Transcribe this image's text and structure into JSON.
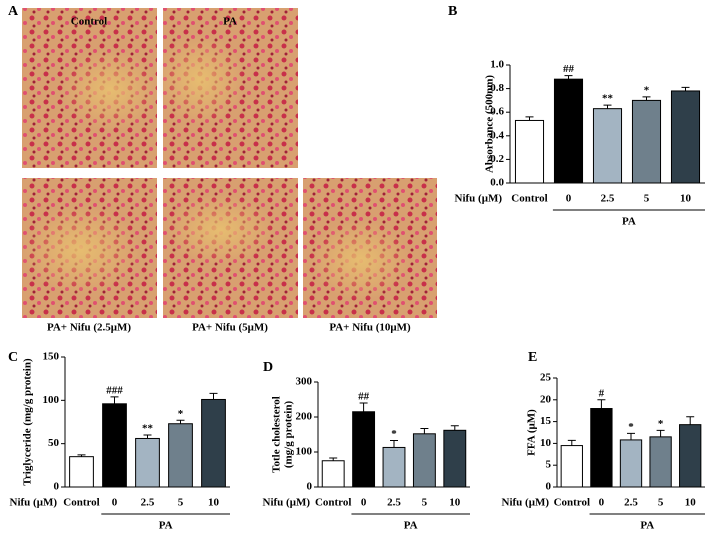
{
  "panel_a": {
    "letter": "A",
    "labels": [
      "Control",
      "PA",
      "PA+ Nifu (2.5μM)",
      "PA+ Nifu (5μM)",
      "PA+ Nifu (10μM)"
    ]
  },
  "chart_data": [
    {
      "letter": "B",
      "type": "bar",
      "ylabel": "Absorbance (500nm)",
      "x_label": "Nifu (μM)",
      "group_label": "PA",
      "categories": [
        "Control",
        "0",
        "2.5",
        "5",
        "10"
      ],
      "values": [
        0.53,
        0.88,
        0.63,
        0.7,
        0.78
      ],
      "errors": [
        0.03,
        0.03,
        0.03,
        0.03,
        0.03
      ],
      "annotations": [
        null,
        "##",
        "**",
        "*",
        null
      ],
      "colors": [
        "#ffffff",
        "#000000",
        "#a3b4c2",
        "#6f808c",
        "#2f3f4a"
      ],
      "ylim": [
        0,
        1
      ],
      "yticks": [
        {
          "value": 0,
          "label": "0.0"
        },
        0.2,
        0.4,
        0.6,
        0.8,
        {
          "value": 1,
          "label": "1.0"
        }
      ]
    },
    {
      "letter": "C",
      "type": "bar",
      "ylabel": "Triglyceride (mg/g protein)",
      "x_label": "Nifu (μM)",
      "group_label": "PA",
      "categories": [
        "Control",
        "0",
        "2.5",
        "5",
        "10"
      ],
      "values": [
        35,
        96,
        56,
        73,
        101
      ],
      "errors": [
        2,
        8,
        4,
        4,
        7
      ],
      "annotations": [
        null,
        "###",
        "**",
        "*",
        null
      ],
      "colors": [
        "#ffffff",
        "#000000",
        "#a3b4c2",
        "#6f808c",
        "#2f3f4a"
      ],
      "ylim": [
        0,
        150
      ],
      "yticks": [
        0,
        50,
        100,
        150
      ]
    },
    {
      "letter": "D",
      "type": "bar",
      "ylabel": [
        "Totle cholesterol",
        "(mg/g protein)"
      ],
      "x_label": "Nifu (μM)",
      "group_label": "PA",
      "categories": [
        "Control",
        "0",
        "2.5",
        "5",
        "10"
      ],
      "values": [
        75,
        215,
        113,
        152,
        162
      ],
      "errors": [
        8,
        25,
        20,
        15,
        13
      ],
      "annotations": [
        null,
        "##",
        "*",
        null,
        null
      ],
      "colors": [
        "#ffffff",
        "#000000",
        "#a3b4c2",
        "#6f808c",
        "#2f3f4a"
      ],
      "ylim": [
        0,
        300
      ],
      "yticks": [
        0,
        100,
        200,
        300
      ]
    },
    {
      "letter": "E",
      "type": "bar",
      "ylabel": "FFA (μM)",
      "x_label": "Nifu (μM)",
      "group_label": "PA",
      "categories": [
        "Control",
        "0",
        "2.5",
        "5",
        "10"
      ],
      "values": [
        9.5,
        18,
        10.8,
        11.5,
        14.3
      ],
      "errors": [
        1.2,
        2,
        1.5,
        1.5,
        1.8
      ],
      "annotations": [
        null,
        "#",
        "*",
        "*",
        null
      ],
      "colors": [
        "#ffffff",
        "#000000",
        "#a3b4c2",
        "#6f808c",
        "#2f3f4a"
      ],
      "ylim": [
        0,
        25
      ],
      "yticks": [
        0,
        5,
        10,
        15,
        20,
        25
      ]
    }
  ]
}
